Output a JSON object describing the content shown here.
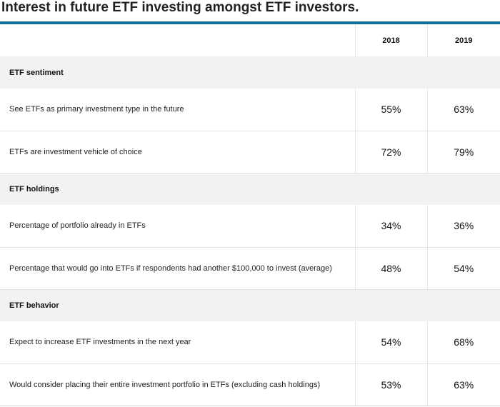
{
  "title": "Interest in future ETF investing amongst ETF investors.",
  "columns": [
    "2018",
    "2019"
  ],
  "sections": [
    {
      "label": "ETF sentiment",
      "rows": [
        {
          "label": "See ETFs as primary investment type in the future",
          "v2018": "55%",
          "v2019": "63%"
        },
        {
          "label": "ETFs are investment vehicle of choice",
          "v2018": "72%",
          "v2019": "79%"
        }
      ]
    },
    {
      "label": "ETF holdings",
      "rows": [
        {
          "label": "Percentage of portfolio already in ETFs",
          "v2018": "34%",
          "v2019": "36%"
        },
        {
          "label": "Percentage that would go into ETFs if respondents had another $100,000 to invest (average)",
          "v2018": "48%",
          "v2019": "54%"
        }
      ]
    },
    {
      "label": "ETF behavior",
      "rows": [
        {
          "label": "Expect to increase ETF investments in the next year",
          "v2018": "54%",
          "v2019": "68%"
        },
        {
          "label": "Would consider placing their entire investment portfolio in ETFs (excluding cash holdings)",
          "v2018": "53%",
          "v2019": "63%"
        }
      ]
    }
  ],
  "colors": {
    "accent_rule": "#0e7191",
    "section_bg": "#f2f2f2"
  }
}
